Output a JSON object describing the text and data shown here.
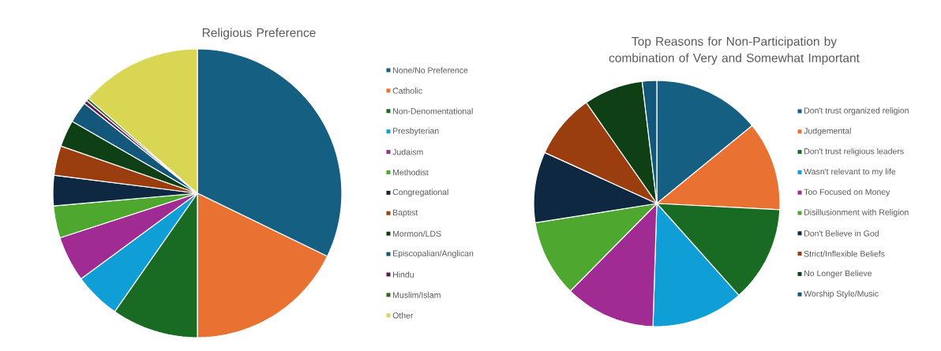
{
  "chart_data": [
    {
      "type": "pie",
      "title": "Religious Preference",
      "legend": "right",
      "categories": [
        "None/No Preference",
        "Catholic",
        "Non-Denomentational",
        "Presbyterian",
        "Judaism",
        "Methodist",
        "Congregational",
        "Baptist",
        "Mormon/LDS",
        "Episcopalian/Anglican",
        "Hindu",
        "Muslim/Islam",
        "Other"
      ],
      "values": [
        32.2,
        17.8,
        9.7,
        5.2,
        5.1,
        3.6,
        3.4,
        3.3,
        3.0,
        2.4,
        0.4,
        0.3,
        13.6
      ],
      "colors": [
        "#156082",
        "#e97132",
        "#196b24",
        "#0f9ed5",
        "#a02b93",
        "#4ea72e",
        "#0e2841",
        "#9a3d0f",
        "#0e3f15",
        "#13587a",
        "#5f1a58",
        "#2e6a1b",
        "#d9d654"
      ]
    },
    {
      "type": "pie",
      "title": "Top Reasons for Non-Participation by combination of Very and Somewhat Important",
      "legend": "right",
      "categories": [
        "Don't trust organized religion",
        "Judgemental",
        "Don't trust religious leaders",
        "Wasn't relevant to my life",
        "Too Focused on Money",
        "Disillusionment with Religion",
        "Don't Believe in God",
        "Strict/Inflexible Beliefs",
        "No Longer Believe",
        "Worship Style/Music"
      ],
      "values": [
        14.1,
        11.7,
        12.6,
        12.1,
        11.9,
        10.1,
        9.3,
        8.5,
        7.8,
        1.9
      ],
      "colors": [
        "#156082",
        "#e97132",
        "#196b24",
        "#0f9ed5",
        "#a02b93",
        "#4ea72e",
        "#0e2841",
        "#9a3d0f",
        "#0e3f15",
        "#13587a"
      ]
    }
  ]
}
